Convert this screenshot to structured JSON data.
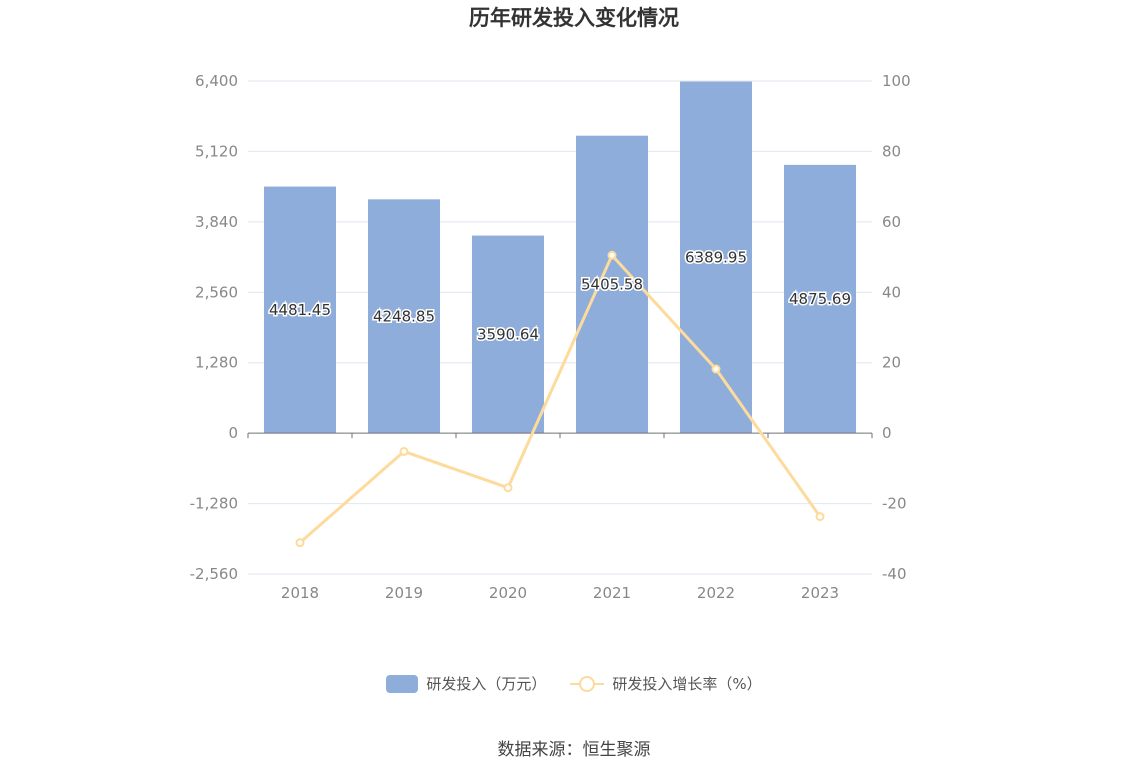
{
  "chart_data": {
    "type": "bar",
    "title": "历年研发投入变化情况",
    "categories": [
      "2018",
      "2019",
      "2020",
      "2021",
      "2022",
      "2023"
    ],
    "series": [
      {
        "name": "研发投入（万元）",
        "type": "bar",
        "axis": "left",
        "color": "#8eadda",
        "values": [
          4481.45,
          4248.85,
          3590.64,
          5405.58,
          6389.95,
          4875.69
        ],
        "labels": [
          "4481.45",
          "4248.85",
          "3590.64",
          "5405.58",
          "6389.95",
          "4875.69"
        ]
      },
      {
        "name": "研发投入增长率（%）",
        "type": "line",
        "axis": "right",
        "color": "#fcdb9c",
        "values": [
          -31.1,
          -5.2,
          -15.5,
          50.5,
          18.2,
          -23.7
        ]
      }
    ],
    "y_left": {
      "min": -2560,
      "max": 6400,
      "ticks": [
        "6,400",
        "5,120",
        "3,840",
        "2,560",
        "1,280",
        "0",
        "-1,280",
        "-2,560"
      ],
      "tick_values": [
        6400,
        5120,
        3840,
        2560,
        1280,
        0,
        -1280,
        -2560
      ]
    },
    "y_right": {
      "min": -40,
      "max": 100,
      "ticks": [
        "100",
        "80",
        "60",
        "40",
        "20",
        "0",
        "-20",
        "-40"
      ],
      "tick_values": [
        100,
        80,
        60,
        40,
        20,
        0,
        -20,
        -40
      ]
    },
    "grid": true,
    "legend_position": "bottom"
  },
  "source": "数据来源：恒生聚源"
}
